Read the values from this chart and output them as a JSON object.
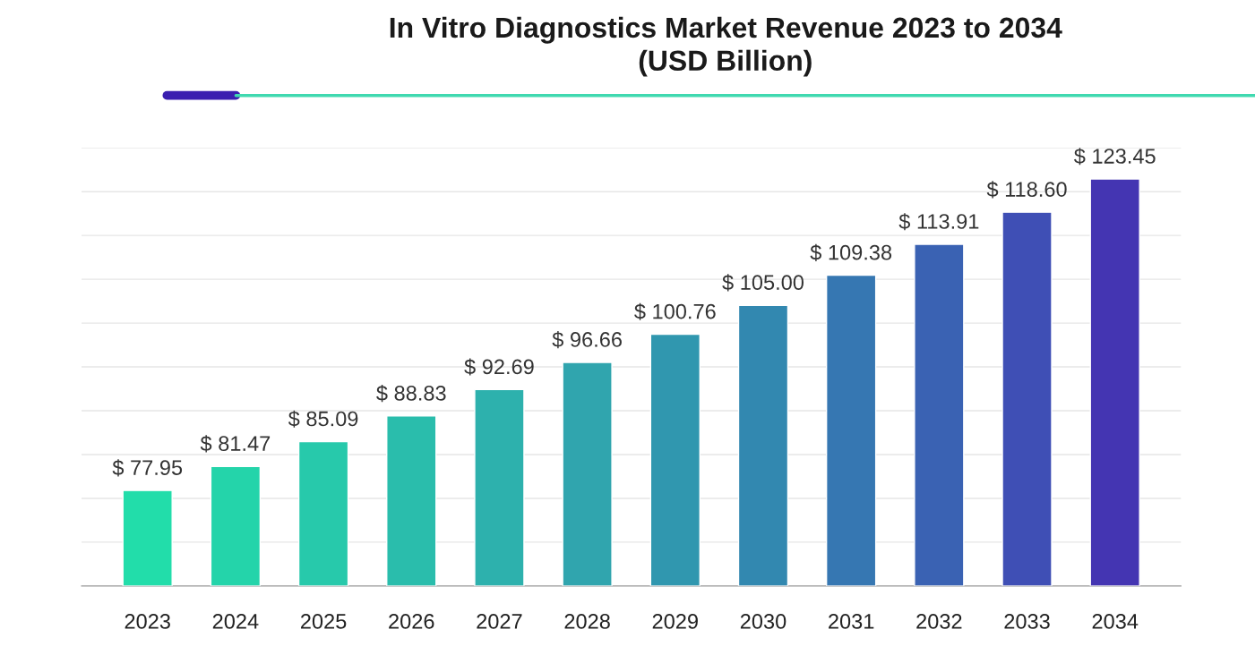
{
  "chart_data": {
    "type": "bar",
    "title": "In Vitro Diagnostics Market Revenue 2023 to 2034\n(USD Billion)",
    "categories": [
      "2023",
      "2024",
      "2025",
      "2026",
      "2027",
      "2028",
      "2029",
      "2030",
      "2031",
      "2032",
      "2033",
      "2034"
    ],
    "values": [
      77.95,
      81.47,
      85.09,
      88.83,
      92.69,
      96.66,
      100.76,
      105.0,
      109.38,
      113.91,
      118.6,
      123.45
    ],
    "colors": [
      "#22ddaa",
      "#24d4aa",
      "#27c9ab",
      "#2abdac",
      "#2db1ad",
      "#30a5ae",
      "#3097af",
      "#3288b0",
      "#3677b2",
      "#3a62b3",
      "#3f4fb5",
      "#4435b2"
    ],
    "value_labels": [
      "$ 77.95",
      "$ 81.47",
      "$ 85.09",
      "$ 88.83",
      "$ 92.69",
      "$ 96.66",
      "$ 100.76",
      "$ 105.00",
      "$ 109.38",
      "$ 113.91",
      "$ 118.60",
      "$ 123.45"
    ],
    "ylim": [
      64,
      128
    ],
    "yticks": [
      {
        "value": 64,
        "label": null
      },
      {
        "value": 70.4,
        "label": null
      },
      {
        "value": 76.8,
        "label": null
      },
      {
        "value": 83.2,
        "label": null
      },
      {
        "value": 89.6,
        "label": null
      },
      {
        "value": 96,
        "label": null
      },
      {
        "value": 102.4,
        "label": null
      },
      {
        "value": 108.8,
        "label": null
      },
      {
        "value": 115.2,
        "label": null
      },
      {
        "value": 121.6,
        "label": null
      },
      {
        "value": 128,
        "label": null
      }
    ],
    "grid": "y",
    "tick_labels": "x"
  }
}
